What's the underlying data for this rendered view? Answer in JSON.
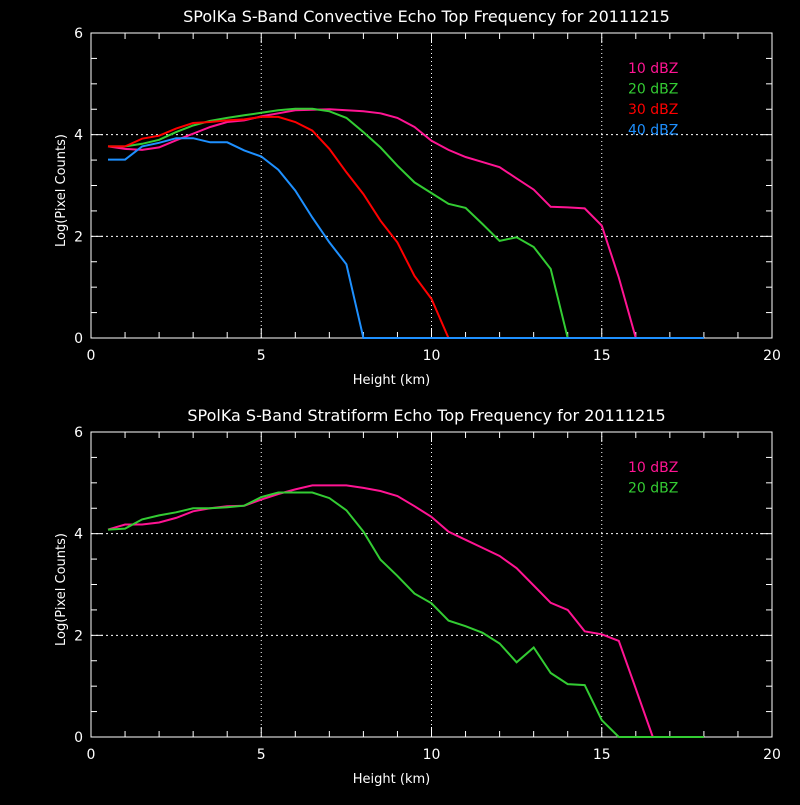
{
  "chart_data": [
    {
      "type": "line",
      "title": "SPolKa S-Band Convective Echo Top Frequency for 20111215",
      "xlabel": "Height (km)",
      "ylabel": "Log(Pixel Counts)",
      "xlim": [
        0,
        20
      ],
      "ylim": [
        0,
        6
      ],
      "xticks": [
        "0",
        "5",
        "10",
        "15",
        "20"
      ],
      "yticks": [
        "0",
        "2",
        "4",
        "6"
      ],
      "grid": true,
      "legend_position": "top-right",
      "series": [
        {
          "name": "10 dBZ",
          "color": "#ff1493",
          "x": [
            0.5,
            1,
            1.5,
            2,
            2.5,
            3,
            3.5,
            4,
            4.5,
            5,
            5.5,
            6,
            6.5,
            7,
            7.5,
            8,
            8.5,
            9,
            9.5,
            10,
            10.5,
            11,
            11.5,
            12,
            12.5,
            13,
            13.5,
            14,
            14.5,
            15,
            15.5,
            16,
            16.5,
            17,
            17.5,
            18
          ],
          "y": [
            3.77,
            3.72,
            3.7,
            3.75,
            3.89,
            4.02,
            4.15,
            4.25,
            4.28,
            4.36,
            4.42,
            4.48,
            4.49,
            4.5,
            4.48,
            4.46,
            4.42,
            4.33,
            4.15,
            3.88,
            3.7,
            3.56,
            3.46,
            3.36,
            3.14,
            2.92,
            2.58,
            2.57,
            2.55,
            2.21,
            1.19,
            0,
            0,
            0,
            0,
            0
          ]
        },
        {
          "name": "20 dBZ",
          "color": "#33cc33",
          "x": [
            0.5,
            1,
            1.5,
            2,
            2.5,
            3,
            3.5,
            4,
            4.5,
            5,
            5.5,
            6,
            6.5,
            7,
            7.5,
            8,
            8.5,
            9,
            9.5,
            10,
            10.5,
            11,
            11.5,
            12,
            12.5,
            13,
            13.5,
            14,
            14.5,
            15,
            15.5,
            16,
            16.5,
            17,
            17.5,
            18
          ],
          "y": [
            3.77,
            3.77,
            3.82,
            3.9,
            4.05,
            4.18,
            4.27,
            4.33,
            4.38,
            4.43,
            4.48,
            4.51,
            4.51,
            4.46,
            4.33,
            4.05,
            3.75,
            3.39,
            3.06,
            2.85,
            2.64,
            2.56,
            2.24,
            1.91,
            1.98,
            1.79,
            1.36,
            0,
            0,
            0,
            0,
            0,
            0,
            0,
            0,
            0
          ]
        },
        {
          "name": "30 dBZ",
          "color": "#ff0000",
          "x": [
            0.5,
            1,
            1.5,
            2,
            2.5,
            3,
            3.5,
            4,
            4.5,
            5,
            5.5,
            6,
            6.5,
            7,
            7.5,
            8,
            8.5,
            9,
            9.5,
            10,
            10.5,
            11,
            11.5,
            12,
            12.5,
            13,
            13.5,
            14,
            14.5,
            15,
            15.5,
            16,
            16.5,
            17,
            17.5,
            18
          ],
          "y": [
            3.77,
            3.77,
            3.92,
            3.98,
            4.12,
            4.23,
            4.25,
            4.28,
            4.3,
            4.35,
            4.35,
            4.25,
            4.08,
            3.72,
            3.26,
            2.83,
            2.31,
            1.88,
            1.22,
            0.77,
            0,
            0,
            0,
            0,
            0,
            0,
            0,
            0,
            0,
            0,
            0,
            0,
            0,
            0,
            0,
            0
          ]
        },
        {
          "name": "40 dBZ",
          "color": "#1e90ff",
          "x": [
            0.5,
            1,
            1.5,
            2,
            2.5,
            3,
            3.5,
            4,
            4.5,
            5,
            5.5,
            6,
            6.5,
            7,
            7.5,
            8,
            8.5,
            9,
            9.5,
            10,
            10.5,
            11,
            11.5,
            12,
            12.5,
            13,
            13.5,
            14,
            14.5,
            15,
            15.5,
            16,
            16.5,
            17,
            17.5,
            18
          ],
          "y": [
            3.51,
            3.51,
            3.77,
            3.84,
            3.93,
            3.93,
            3.85,
            3.85,
            3.69,
            3.57,
            3.31,
            2.9,
            2.37,
            1.88,
            1.45,
            0,
            0,
            0,
            0,
            0,
            0,
            0,
            0,
            0,
            0,
            0,
            0,
            0,
            0,
            0,
            0,
            0,
            0,
            0,
            0,
            0
          ]
        }
      ]
    },
    {
      "type": "line",
      "title": "SPolKa S-Band Stratiform Echo Top Frequency for 20111215",
      "xlabel": "Height (km)",
      "ylabel": "Log(Pixel Counts)",
      "xlim": [
        0,
        20
      ],
      "ylim": [
        0,
        6
      ],
      "xticks": [
        "0",
        "5",
        "10",
        "15",
        "20"
      ],
      "yticks": [
        "0",
        "2",
        "4",
        "6"
      ],
      "grid": true,
      "legend_position": "top-right",
      "series": [
        {
          "name": "10 dBZ",
          "color": "#ff1493",
          "x": [
            0.5,
            1,
            1.5,
            2,
            2.5,
            3,
            3.5,
            4,
            4.5,
            5,
            5.5,
            6,
            6.5,
            7,
            7.5,
            8,
            8.5,
            9,
            9.5,
            10,
            10.5,
            11,
            11.5,
            12,
            12.5,
            13,
            13.5,
            14,
            14.5,
            15,
            15.5,
            16,
            16.5,
            17,
            17.5,
            18
          ],
          "y": [
            4.08,
            4.18,
            4.18,
            4.22,
            4.31,
            4.44,
            4.5,
            4.54,
            4.55,
            4.67,
            4.78,
            4.87,
            4.95,
            4.95,
            4.95,
            4.9,
            4.84,
            4.74,
            4.54,
            4.33,
            4.04,
            3.88,
            3.72,
            3.56,
            3.32,
            2.98,
            2.64,
            2.5,
            2.08,
            2.02,
            1.89,
            0.95,
            0,
            0,
            0,
            0
          ]
        },
        {
          "name": "20 dBZ",
          "color": "#33cc33",
          "x": [
            0.5,
            1,
            1.5,
            2,
            2.5,
            3,
            3.5,
            4,
            4.5,
            5,
            5.5,
            6,
            6.5,
            7,
            7.5,
            8,
            8.5,
            9,
            9.5,
            10,
            10.5,
            11,
            11.5,
            12,
            12.5,
            13,
            13.5,
            14,
            14.5,
            15,
            15.5,
            16,
            16.5,
            17,
            17.5,
            18
          ],
          "y": [
            4.08,
            4.1,
            4.28,
            4.36,
            4.42,
            4.5,
            4.5,
            4.52,
            4.55,
            4.72,
            4.81,
            4.81,
            4.81,
            4.7,
            4.46,
            4.04,
            3.49,
            3.17,
            2.82,
            2.63,
            2.29,
            2.18,
            2.05,
            1.84,
            1.47,
            1.76,
            1.26,
            1.04,
            1.02,
            0.33,
            0,
            0,
            0,
            0,
            0,
            0
          ]
        }
      ]
    }
  ]
}
